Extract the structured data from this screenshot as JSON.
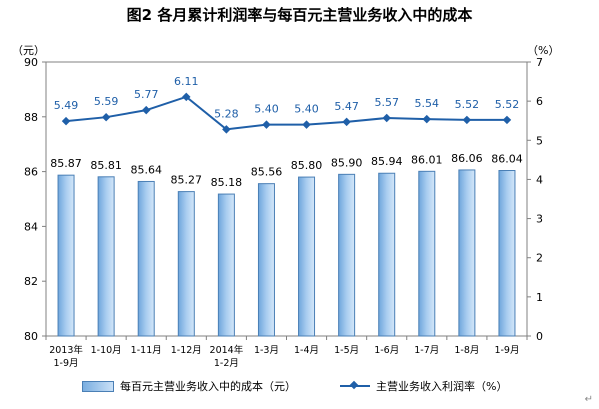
{
  "title": "图2  各月累计利润率与每百元主营业务收入中的成本",
  "y_left_unit": "（元）",
  "y_right_unit": "（%）",
  "return_mark": "↵",
  "chart_data": {
    "type": "bar+line",
    "categories": [
      [
        "2013年",
        "1-9月"
      ],
      [
        "1-10月"
      ],
      [
        "1-11月"
      ],
      [
        "1-12月"
      ],
      [
        "2014年",
        "1-2月"
      ],
      [
        "1-3月"
      ],
      [
        "1-4月"
      ],
      [
        "1-5月"
      ],
      [
        "1-6月"
      ],
      [
        "1-7月"
      ],
      [
        "1-8月"
      ],
      [
        "1-9月"
      ]
    ],
    "left_axis": {
      "min": 80,
      "max": 90,
      "ticks": [
        80,
        82,
        84,
        86,
        88,
        90
      ]
    },
    "right_axis": {
      "min": 0,
      "max": 7,
      "ticks": [
        0,
        1,
        2,
        3,
        4,
        5,
        6,
        7
      ]
    },
    "series": [
      {
        "name": "每百元主营业务收入中的成本（元）",
        "type": "bar",
        "axis": "left",
        "values": [
          85.87,
          85.81,
          85.64,
          85.27,
          85.18,
          85.56,
          85.8,
          85.9,
          85.94,
          86.01,
          86.06,
          86.04
        ],
        "labels": [
          "85.87",
          "85.81",
          "85.64",
          "85.27",
          "85.18",
          "85.56",
          "85.80",
          "85.90",
          "85.94",
          "86.01",
          "86.06",
          "86.04"
        ]
      },
      {
        "name": "主营业务收入利润率（%）",
        "type": "line",
        "axis": "right",
        "values": [
          5.49,
          5.59,
          5.77,
          6.11,
          5.28,
          5.4,
          5.4,
          5.47,
          5.57,
          5.54,
          5.52,
          5.52
        ],
        "labels": [
          "5.49",
          "5.59",
          "5.77",
          "6.11",
          "5.28",
          "5.40",
          "5.40",
          "5.47",
          "5.57",
          "5.54",
          "5.52",
          "5.52"
        ]
      }
    ],
    "colors": {
      "bar": "#9cc3ea",
      "bar_border": "#4a7fb5",
      "line": "#1f5fa8",
      "line_label": "#1f5fa8"
    },
    "legend_position": "bottom",
    "grid": false
  }
}
